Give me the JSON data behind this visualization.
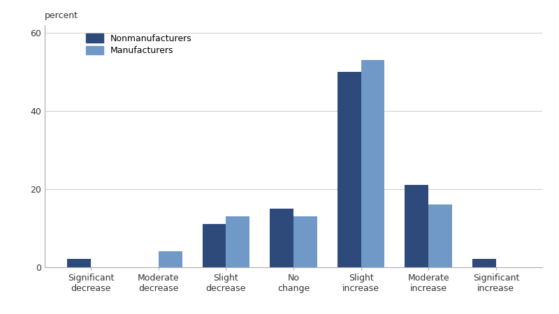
{
  "categories": [
    "Significant\ndecrease",
    "Moderate\ndecrease",
    "Slight\ndecrease",
    "No\nchange",
    "Slight\nincrease",
    "Moderate\nincrease",
    "Significant\nincrease"
  ],
  "nonmanufacturers": [
    2,
    0,
    11,
    15,
    50,
    21,
    2
  ],
  "manufacturers": [
    0,
    4,
    13,
    13,
    53,
    16,
    0
  ],
  "nonmfg_color": "#2e4a7a",
  "mfg_color": "#7099c8",
  "bar_width": 0.35,
  "ylim": [
    0,
    62
  ],
  "yticks": [
    0,
    20,
    40,
    60
  ],
  "ylabel": "percent",
  "legend_labels": [
    "Nonmanufacturers",
    "Manufacturers"
  ],
  "grid_color": "#cccccc",
  "background_color": "#ffffff",
  "figsize": [
    8.0,
    4.5
  ],
  "dpi": 100
}
